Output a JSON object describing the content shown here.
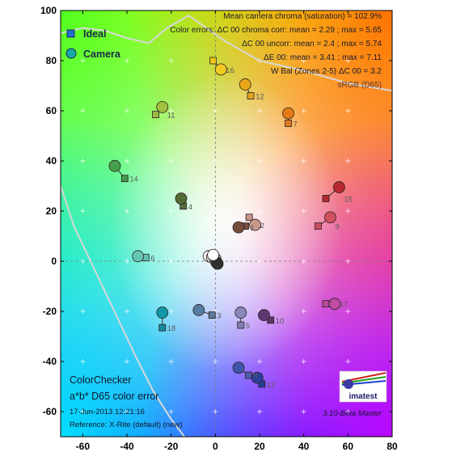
{
  "chart_data": {
    "type": "scatter",
    "xlim": [
      -70,
      80
    ],
    "ylim": [
      -70,
      100
    ],
    "x_ticks": [
      -60,
      -40,
      -20,
      0,
      20,
      40,
      60,
      80
    ],
    "y_ticks": [
      -60,
      -40,
      -20,
      0,
      20,
      40,
      60,
      80,
      100
    ],
    "x_tick_labels": [
      "-60",
      "-40",
      "-20",
      "0",
      "20",
      "40",
      "60",
      "80"
    ],
    "y_tick_labels": [
      "-60",
      "-40",
      "-20",
      "0",
      "20",
      "40",
      "60",
      "80",
      "100"
    ],
    "grid": "faint plus markers every 10 units",
    "legend": {
      "placement": "top-left",
      "entries": [
        {
          "name": "Ideal",
          "marker": "square",
          "color": "#1f6fd0"
        },
        {
          "name": "Camera",
          "marker": "circle",
          "color": "#17a9a8"
        }
      ]
    },
    "stats": [
      "Mean camera chroma (saturation) = 102.9%",
      "Color errors:  ΔC 00 chroma corr:  mean = 2.29 ;  max = 5.65",
      "ΔC 00 uncorr:  mean = 2.4 ;  max = 5.74",
      "ΔE 00:  mean = 3.41 ;  max = 7.11",
      "W Bal (Zones 2-5) ΔC 00 = 3.2",
      "sRGB (D65)"
    ],
    "footer": {
      "title": "ColorChecker",
      "subtitle": "a*b* D65 color error",
      "date": "17-Jun-2013 12:21:16",
      "reference": "Reference: X-Rite (default) (new)",
      "version": "3.10-Beta  Master",
      "logo_text": "imatest"
    },
    "series": [
      {
        "name": "Ideal",
        "marker": "square",
        "points": [
          {
            "label": "1",
            "x": 13.6,
            "y": 14.0,
            "color": "#7a5040"
          },
          {
            "label": "2",
            "x": 15.3,
            "y": 17.5,
            "color": "#c49486"
          },
          {
            "label": "3",
            "x": -1.5,
            "y": -21.5,
            "color": "#5b7a9c"
          },
          {
            "label": "4",
            "x": -14.5,
            "y": 22.0,
            "color": "#596b40"
          },
          {
            "label": "5",
            "x": 11.5,
            "y": -25.5,
            "color": "#8080b2"
          },
          {
            "label": "6",
            "x": -31.5,
            "y": 1.5,
            "color": "#62c2b0"
          },
          {
            "label": "7",
            "x": 33.0,
            "y": 55.0,
            "color": "#e07820"
          },
          {
            "label": "8",
            "x": 15.0,
            "y": -45.5,
            "color": "#4a5cac"
          },
          {
            "label": "9",
            "x": 46.5,
            "y": 14.0,
            "color": "#c85060"
          },
          {
            "label": "10",
            "x": 25.0,
            "y": -23.5,
            "color": "#5a3a6a"
          },
          {
            "label": "11",
            "x": -27.0,
            "y": 58.5,
            "color": "#9cba40"
          },
          {
            "label": "12",
            "x": 16.0,
            "y": 66.0,
            "color": "#e0a220"
          },
          {
            "label": "13",
            "x": 21.0,
            "y": -49.0,
            "color": "#283c96"
          },
          {
            "label": "14",
            "x": -41.0,
            "y": 33.0,
            "color": "#46964a"
          },
          {
            "label": "15",
            "x": 50.0,
            "y": 25.0,
            "color": "#b02830"
          },
          {
            "label": "16",
            "x": -1.0,
            "y": 80.0,
            "color": "#ecc814"
          },
          {
            "label": "17",
            "x": 50.0,
            "y": -17.0,
            "color": "#b84c98"
          },
          {
            "label": "18",
            "x": -24.0,
            "y": -26.5,
            "color": "#188aa2"
          }
        ]
      },
      {
        "name": "Camera",
        "marker": "circle",
        "points": [
          {
            "label": "1",
            "x": 10.5,
            "y": 13.5,
            "color": "#734c3e"
          },
          {
            "label": "2",
            "x": 18.0,
            "y": 14.5,
            "color": "#c89888"
          },
          {
            "label": "3",
            "x": -7.5,
            "y": -19.5,
            "color": "#577ca2"
          },
          {
            "label": "4",
            "x": -15.5,
            "y": 25.0,
            "color": "#556b38"
          },
          {
            "label": "5",
            "x": 11.5,
            "y": -20.5,
            "color": "#8888bc"
          },
          {
            "label": "6",
            "x": -35.0,
            "y": 2.0,
            "color": "#66c6b4"
          },
          {
            "label": "7",
            "x": 33.0,
            "y": 59.0,
            "color": "#e47a14"
          },
          {
            "label": "8",
            "x": 10.5,
            "y": -42.5,
            "color": "#3e56ac"
          },
          {
            "label": "9",
            "x": 52.0,
            "y": 17.5,
            "color": "#d2505e"
          },
          {
            "label": "10",
            "x": 22.0,
            "y": -21.5,
            "color": "#5e3870"
          },
          {
            "label": "11",
            "x": -24.0,
            "y": 61.5,
            "color": "#a0c040"
          },
          {
            "label": "12",
            "x": 13.5,
            "y": 70.5,
            "color": "#e8a81a"
          },
          {
            "label": "13",
            "x": 19.0,
            "y": -46.5,
            "color": "#2a3e9e"
          },
          {
            "label": "14",
            "x": -45.5,
            "y": 38.0,
            "color": "#44a04a"
          },
          {
            "label": "15",
            "x": 56.0,
            "y": 29.5,
            "color": "#b82830"
          },
          {
            "label": "16",
            "x": 2.5,
            "y": 76.5,
            "color": "#f0ca20"
          },
          {
            "label": "17",
            "x": 54.0,
            "y": -17.0,
            "color": "#c04ca4"
          },
          {
            "label": "18",
            "x": -24.0,
            "y": -20.5,
            "color": "#1298aa"
          }
        ]
      }
    ],
    "neutral_points": [
      {
        "x": -3.0,
        "y": 2.0,
        "color": "#f0f0f0"
      },
      {
        "x": -1.5,
        "y": 1.5,
        "color": "#d0d0d0"
      },
      {
        "x": 0.0,
        "y": 1.0,
        "color": "#a0a0a0"
      },
      {
        "x": 0.5,
        "y": -0.5,
        "color": "#606060"
      },
      {
        "x": 1.0,
        "y": -1.0,
        "color": "#303030"
      },
      {
        "x": -1.0,
        "y": 2.5,
        "color": "#ffffff"
      }
    ],
    "gamut_boundary": [
      [
        -70,
        30
      ],
      [
        -64,
        14
      ],
      [
        -57,
        1
      ],
      [
        -50,
        -12
      ],
      [
        -43,
        -25
      ],
      [
        -36,
        -38
      ],
      [
        -28,
        -52
      ],
      [
        -20,
        -63
      ],
      [
        -14,
        -70
      ]
    ],
    "gamut_boundary_top": [
      [
        -70,
        91
      ],
      [
        -60,
        93
      ],
      [
        -50,
        92
      ],
      [
        -40,
        89
      ],
      [
        -30,
        87
      ],
      [
        -22,
        93
      ],
      [
        -12,
        98
      ],
      [
        -4,
        93
      ],
      [
        4,
        88
      ],
      [
        20,
        80
      ],
      [
        40,
        76
      ],
      [
        60,
        71
      ],
      [
        80,
        68
      ]
    ]
  }
}
